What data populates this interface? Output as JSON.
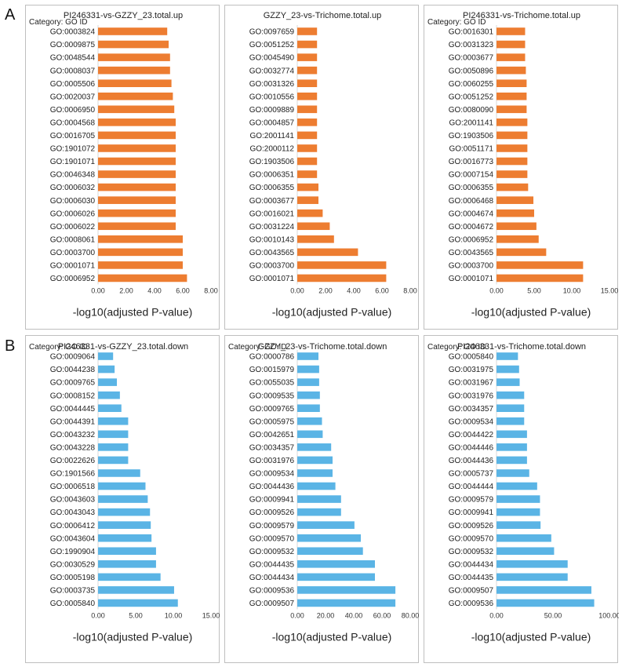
{
  "panel_labels": [
    "A",
    "B"
  ],
  "chart_data": [
    {
      "type": "bar",
      "orientation": "horizontal",
      "title": "PI246331-vs-GZZY_23.total.up",
      "category_header": "Category: GO ID",
      "xlabel": "-log10(adjusted P-value)",
      "xlim": [
        0,
        8
      ],
      "ticks": [
        0,
        2,
        4,
        6,
        8
      ],
      "tick_labels": [
        "0.00",
        "2.00",
        "4.00",
        "6.00",
        "8.00"
      ],
      "color": "#ED7D31",
      "categories": [
        "GO:0003824",
        "GO:0009875",
        "GO:0048544",
        "GO:0008037",
        "GO:0005506",
        "GO:0020037",
        "GO:0006950",
        "GO:0004568",
        "GO:0016705",
        "GO:1901072",
        "GO:1901071",
        "GO:0046348",
        "GO:0006032",
        "GO:0006030",
        "GO:0006026",
        "GO:0006022",
        "GO:0008061",
        "GO:0003700",
        "GO:0001071",
        "GO:0006952"
      ],
      "values": [
        4.9,
        5.0,
        5.1,
        5.1,
        5.2,
        5.3,
        5.4,
        5.5,
        5.5,
        5.5,
        5.5,
        5.5,
        5.5,
        5.5,
        5.5,
        5.5,
        6.0,
        6.0,
        6.0,
        6.3
      ]
    },
    {
      "type": "bar",
      "orientation": "horizontal",
      "title": "GZZY_23-vs-Trichome.total.up",
      "category_header": "",
      "xlabel": "-log10(adjusted P-value)",
      "xlim": [
        0,
        8
      ],
      "ticks": [
        0,
        2,
        4,
        6,
        8
      ],
      "tick_labels": [
        "0.00",
        "2.00",
        "4.00",
        "6.00",
        "8.00"
      ],
      "color": "#ED7D31",
      "categories": [
        "GO:0097659",
        "GO:0051252",
        "GO:0045490",
        "GO:0032774",
        "GO:0031326",
        "GO:0010556",
        "GO:0009889",
        "GO:0004857",
        "GO:2001141",
        "GO:2000112",
        "GO:1903506",
        "GO:0006351",
        "GO:0006355",
        "GO:0003677",
        "GO:0016021",
        "GO:0031224",
        "GO:0010143",
        "GO:0043565",
        "GO:0003700",
        "GO:0001071"
      ],
      "values": [
        1.4,
        1.4,
        1.4,
        1.4,
        1.4,
        1.4,
        1.4,
        1.4,
        1.4,
        1.4,
        1.4,
        1.4,
        1.5,
        1.5,
        1.8,
        2.3,
        2.6,
        4.3,
        6.3,
        6.3
      ]
    },
    {
      "type": "bar",
      "orientation": "horizontal",
      "title": "PI246331-vs-Trichome.total.up",
      "category_header": "Category: GO ID",
      "xlabel": "-log10(adjusted P-value)",
      "xlim": [
        0,
        15
      ],
      "ticks": [
        0,
        5,
        10,
        15
      ],
      "tick_labels": [
        "0.00",
        "5.00",
        "10.00",
        "15.00"
      ],
      "color": "#ED7D31",
      "categories": [
        "GO:0016301",
        "GO:0031323",
        "GO:0003677",
        "GO:0050896",
        "GO:0060255",
        "GO:0051252",
        "GO:0080090",
        "GO:2001141",
        "GO:1903506",
        "GO:0051171",
        "GO:0016773",
        "GO:0007154",
        "GO:0006355",
        "GO:0006468",
        "GO:0004674",
        "GO:0004672",
        "GO:0006952",
        "GO:0043565",
        "GO:0003700",
        "GO:0001071"
      ],
      "values": [
        3.8,
        3.8,
        3.8,
        3.9,
        4.0,
        4.0,
        4.0,
        4.1,
        4.1,
        4.1,
        4.1,
        4.1,
        4.2,
        4.9,
        5.0,
        5.3,
        5.6,
        6.6,
        11.5,
        11.5
      ]
    },
    {
      "type": "bar",
      "orientation": "horizontal",
      "title": "PI246331-vs-GZZY_23.total.down",
      "category_header": "Category: GO ID",
      "xlabel": "-log10(adjusted P-value)",
      "xlim": [
        0,
        15
      ],
      "ticks": [
        0,
        5,
        10,
        15
      ],
      "tick_labels": [
        "0.00",
        "5.00",
        "10.00",
        "15.00"
      ],
      "color": "#5AB4E5",
      "categories": [
        "GO:0009064",
        "GO:0044238",
        "GO:0009765",
        "GO:0008152",
        "GO:0044445",
        "GO:0044391",
        "GO:0043232",
        "GO:0043228",
        "GO:0022626",
        "GO:1901566",
        "GO:0006518",
        "GO:0043603",
        "GO:0043043",
        "GO:0006412",
        "GO:0043604",
        "GO:1990904",
        "GO:0030529",
        "GO:0005198",
        "GO:0003735",
        "GO:0005840"
      ],
      "values": [
        2.0,
        2.2,
        2.5,
        2.9,
        3.1,
        4.0,
        4.0,
        4.0,
        4.0,
        5.6,
        6.3,
        6.6,
        6.9,
        7.0,
        7.1,
        7.7,
        7.7,
        8.3,
        10.1,
        10.6
      ]
    },
    {
      "type": "bar",
      "orientation": "horizontal",
      "title": "GZZY_23-vs-Trichome.total.down",
      "category_header": "Category: GO ID",
      "xlabel": "-log10(adjusted P-value)",
      "xlim": [
        0,
        80
      ],
      "ticks": [
        0,
        20,
        40,
        60,
        80
      ],
      "tick_labels": [
        "0.00",
        "20.00",
        "40.00",
        "60.00",
        "80.00"
      ],
      "color": "#5AB4E5",
      "categories": [
        "GO:0000786",
        "GO:0015979",
        "GO:0055035",
        "GO:0009535",
        "GO:0009765",
        "GO:0005975",
        "GO:0042651",
        "GO:0034357",
        "GO:0031976",
        "GO:0009534",
        "GO:0044436",
        "GO:0009941",
        "GO:0009526",
        "GO:0009579",
        "GO:0009570",
        "GO:0009532",
        "GO:0044435",
        "GO:0044434",
        "GO:0009536",
        "GO:0009507"
      ],
      "values": [
        15.0,
        15.5,
        15.5,
        16.0,
        16.0,
        17.5,
        18.0,
        24.0,
        25.0,
        25.0,
        27.0,
        31.0,
        31.0,
        40.5,
        45.0,
        46.5,
        55.0,
        55.0,
        69.5,
        69.5
      ]
    },
    {
      "type": "bar",
      "orientation": "horizontal",
      "title": "PI246331-vs-Trichome.total.down",
      "category_header": "Category: GO ID",
      "xlabel": "-log10(adjusted P-value)",
      "xlim": [
        0,
        100
      ],
      "ticks": [
        0,
        50,
        100
      ],
      "tick_labels": [
        "0.00",
        "50.00",
        "100.00"
      ],
      "color": "#5AB4E5",
      "categories": [
        "GO:0005840",
        "GO:0031975",
        "GO:0031967",
        "GO:0031976",
        "GO:0034357",
        "GO:0009534",
        "GO:0044422",
        "GO:0044446",
        "GO:0044436",
        "GO:0005737",
        "GO:0044444",
        "GO:0009579",
        "GO:0009941",
        "GO:0009526",
        "GO:0009570",
        "GO:0009532",
        "GO:0044434",
        "GO:0044435",
        "GO:0009507",
        "GO:0009536"
      ],
      "values": [
        19.0,
        20.0,
        20.5,
        24.5,
        24.5,
        24.5,
        27.0,
        27.0,
        27.0,
        29.0,
        36.0,
        38.5,
        38.5,
        39.0,
        48.5,
        51.0,
        63.0,
        63.0,
        84.0,
        86.5
      ]
    }
  ]
}
